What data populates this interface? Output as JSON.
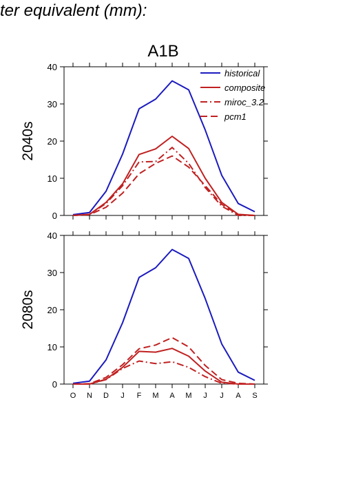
{
  "header": {
    "title": "ter equivalent (mm):"
  },
  "chart_data": {
    "type": "line",
    "title": "A1B",
    "categories": [
      "O",
      "N",
      "D",
      "J",
      "F",
      "M",
      "A",
      "M",
      "J",
      "J",
      "A",
      "S"
    ],
    "ylim": [
      0,
      40
    ],
    "yticks": [
      0,
      10,
      20,
      30,
      40
    ],
    "grid": false,
    "legend": {
      "placement": "top-right",
      "entries": [
        {
          "name": "historical",
          "color": "#1a1abf",
          "dash": "solid"
        },
        {
          "name": "composite",
          "color": "#c02020",
          "dash": "solid"
        },
        {
          "name": "miroc_3.2",
          "color": "#c02020",
          "dash": "dashdot"
        },
        {
          "name": "pcm1",
          "color": "#c02020",
          "dash": "dashed"
        }
      ]
    },
    "panels": [
      {
        "ylabel": "2040s",
        "series": [
          {
            "name": "historical",
            "values": [
              0.2,
              0.8,
              6.5,
              16.5,
              28.7,
              31.3,
              36.2,
              33.8,
              23.0,
              10.8,
              3.2,
              1.0
            ]
          },
          {
            "name": "composite",
            "values": [
              0.0,
              0.3,
              3.5,
              8.5,
              16.4,
              17.9,
              21.3,
              18.0,
              10.0,
              3.5,
              0.3,
              0.0
            ]
          },
          {
            "name": "miroc_3.2",
            "values": [
              0.0,
              0.3,
              3.2,
              8.0,
              14.4,
              14.5,
              18.3,
              14.0,
              7.5,
              2.5,
              0.0,
              0.0
            ]
          },
          {
            "name": "pcm1",
            "values": [
              0.0,
              0.2,
              2.2,
              6.0,
              11.2,
              14.0,
              16.0,
              13.0,
              8.0,
              3.0,
              0.2,
              0.0
            ]
          }
        ]
      },
      {
        "ylabel": "2080s",
        "series": [
          {
            "name": "historical",
            "values": [
              0.2,
              0.8,
              6.5,
              16.5,
              28.7,
              31.3,
              36.2,
              33.8,
              23.0,
              10.8,
              3.2,
              1.0
            ]
          },
          {
            "name": "composite",
            "values": [
              0.0,
              0.0,
              1.3,
              4.5,
              8.8,
              8.6,
              9.6,
              7.5,
              3.5,
              0.5,
              0.0,
              0.0
            ]
          },
          {
            "name": "miroc_3.2",
            "values": [
              0.0,
              0.0,
              1.2,
              4.2,
              6.2,
              5.5,
              6.0,
              4.5,
              2.0,
              0.2,
              0.0,
              0.0
            ]
          },
          {
            "name": "pcm1",
            "values": [
              0.0,
              0.1,
              1.8,
              5.2,
              9.5,
              10.5,
              12.5,
              10.0,
              5.0,
              1.2,
              0.2,
              0.0
            ]
          }
        ]
      }
    ]
  }
}
